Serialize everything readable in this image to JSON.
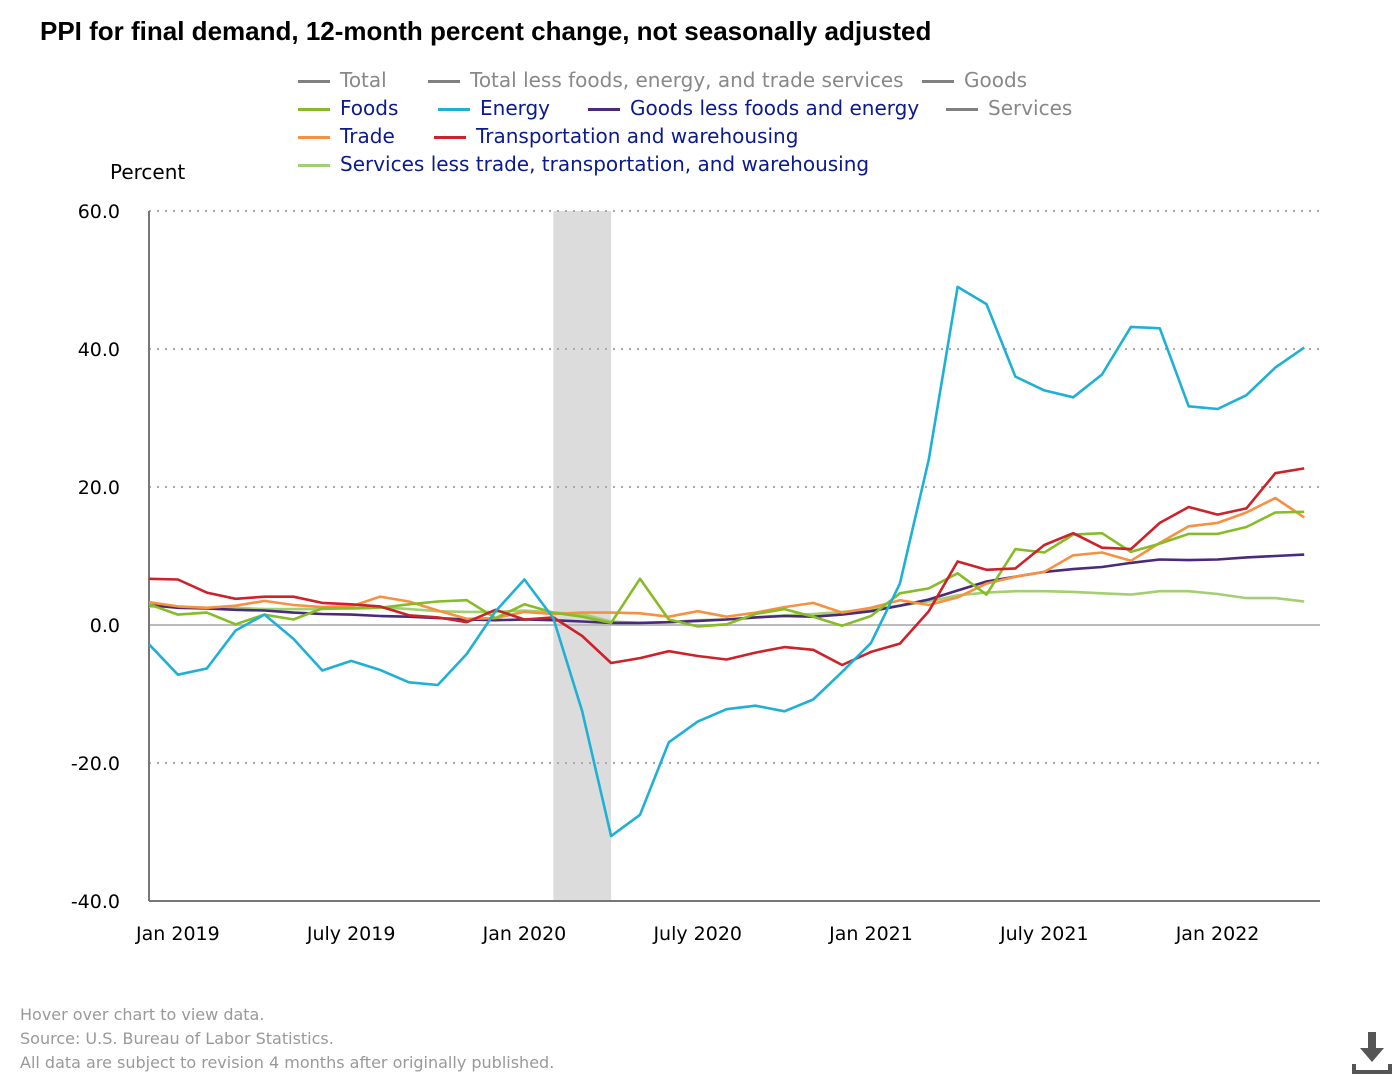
{
  "title": "PPI for final demand, 12-month percent change, not seasonally adjusted",
  "footer": [
    "Hover over chart to view data.",
    "Source: U.S. Bureau of Labor Statistics.",
    "All data are subject to revision 4 months after originally published."
  ],
  "chart_data": {
    "type": "line",
    "title": "PPI for final demand, 12-month percent change, not seasonally adjusted",
    "ylabel": "Percent",
    "ylim": [
      -40,
      60
    ],
    "yticks": [
      "60.0",
      "40.0",
      "20.0",
      "0.0",
      "-20.0",
      "-40.0"
    ],
    "ytick_values": [
      60,
      40,
      20,
      0,
      -20,
      -40
    ],
    "xticks": [
      "Jan 2019",
      "July 2019",
      "Jan 2020",
      "July 2020",
      "Jan 2021",
      "July 2021",
      "Jan 2022"
    ],
    "xtick_index": [
      1,
      7,
      13,
      19,
      25,
      31,
      37
    ],
    "x_start": "Dec 2018",
    "x_end": "Apr 2022",
    "recession_shading": {
      "from": "Feb 2020",
      "to": "Apr 2020",
      "color": "#dcdcdc"
    },
    "grid": "horizontal dotted",
    "legend": [
      {
        "name": "Total",
        "color": "#808080",
        "active": false
      },
      {
        "name": "Total less foods, energy, and trade services",
        "color": "#808080",
        "active": false
      },
      {
        "name": "Goods",
        "color": "#808080",
        "active": false
      },
      {
        "name": "Foods",
        "color": "#86bc25",
        "active": true
      },
      {
        "name": "Energy",
        "color": "#1fb0d5",
        "active": true
      },
      {
        "name": "Goods less foods and energy",
        "color": "#4b2a7b",
        "active": true
      },
      {
        "name": "Services",
        "color": "#808080",
        "active": false
      },
      {
        "name": "Trade",
        "color": "#f79141",
        "active": true
      },
      {
        "name": "Transportation and warehousing",
        "color": "#cc2229",
        "active": true
      },
      {
        "name": "Services less trade, transportation, and warehousing",
        "color": "#a3cf72",
        "active": true
      }
    ],
    "series": [
      {
        "name": "Services less trade, transportation, and warehousing",
        "color": "#a3cf72",
        "values": [
          2.7,
          2.6,
          2.5,
          2.5,
          2.3,
          2.3,
          2.3,
          2.5,
          2.6,
          2.3,
          2.0,
          1.9,
          1.9,
          2.1,
          1.8,
          1.6,
          0.5,
          0.3,
          0.4,
          0.7,
          0.8,
          1.1,
          1.4,
          1.6,
          1.9,
          2.3,
          2.8,
          3.4,
          4.3,
          4.7,
          4.9,
          4.9,
          4.8,
          4.6,
          4.4,
          4.9,
          4.9,
          4.5,
          3.9,
          3.9,
          3.4
        ]
      },
      {
        "name": "Goods less foods and energy",
        "color": "#4b2a7b",
        "values": [
          2.9,
          2.5,
          2.4,
          2.2,
          2.1,
          1.8,
          1.6,
          1.5,
          1.3,
          1.2,
          1.0,
          0.8,
          0.7,
          0.8,
          0.7,
          0.5,
          0.3,
          0.3,
          0.4,
          0.6,
          0.8,
          1.1,
          1.3,
          1.2,
          1.5,
          2.0,
          2.8,
          3.7,
          5.0,
          6.3,
          7.0,
          7.7,
          8.1,
          8.4,
          9.0,
          9.5,
          9.4,
          9.5,
          9.8,
          10.0,
          10.2
        ]
      },
      {
        "name": "Trade",
        "color": "#f79141",
        "values": [
          3.3,
          2.7,
          2.5,
          2.8,
          3.5,
          2.9,
          2.6,
          2.7,
          4.1,
          3.4,
          2.1,
          0.9,
          1.0,
          1.9,
          1.6,
          1.8,
          1.8,
          1.7,
          1.2,
          2.0,
          1.2,
          1.8,
          2.6,
          3.2,
          1.8,
          2.5,
          3.6,
          2.9,
          4.0,
          6.0,
          7.0,
          7.7,
          10.1,
          10.5,
          9.3,
          11.9,
          14.3,
          14.8,
          16.3,
          18.4,
          15.6
        ]
      },
      {
        "name": "Foods",
        "color": "#86bc25",
        "values": [
          3.0,
          1.5,
          1.8,
          0.1,
          1.5,
          0.8,
          2.4,
          2.4,
          2.5,
          3.0,
          3.4,
          3.6,
          1.0,
          3.0,
          1.8,
          1.2,
          0.3,
          6.7,
          0.8,
          -0.2,
          0.1,
          1.6,
          2.3,
          1.2,
          -0.1,
          1.3,
          4.6,
          5.3,
          7.5,
          4.4,
          11.0,
          10.5,
          13.1,
          13.3,
          10.6,
          11.8,
          13.2,
          13.2,
          14.2,
          16.3,
          16.4
        ]
      },
      {
        "name": "Transportation and warehousing",
        "color": "#cc2229",
        "values": [
          6.7,
          6.6,
          4.7,
          3.8,
          4.1,
          4.1,
          3.2,
          3.0,
          2.7,
          1.4,
          1.1,
          0.4,
          2.2,
          0.8,
          1.1,
          -1.6,
          -5.5,
          -4.8,
          -3.8,
          -4.5,
          -5.0,
          -4.0,
          -3.2,
          -3.6,
          -5.8,
          -3.9,
          -2.7,
          2.0,
          9.2,
          8.0,
          8.2,
          11.6,
          13.3,
          11.2,
          11.0,
          14.8,
          17.1,
          16.0,
          16.9,
          22.0,
          22.7
        ]
      },
      {
        "name": "Energy",
        "color": "#1fb0d5",
        "values": [
          -2.8,
          -7.2,
          -6.3,
          -0.8,
          1.5,
          -2.0,
          -6.6,
          -5.2,
          -6.5,
          -8.3,
          -8.7,
          -4.2,
          2.0,
          6.6,
          1.0,
          -12.5,
          -30.6,
          -27.5,
          -17.0,
          -14.0,
          -12.2,
          -11.7,
          -12.5,
          -10.8,
          -6.8,
          -2.6,
          6.0,
          24.0,
          49.0,
          46.5,
          36.0,
          34.0,
          33.0,
          36.3,
          43.2,
          43.0,
          31.7,
          31.3,
          33.3,
          37.3,
          40.2
        ]
      }
    ]
  }
}
